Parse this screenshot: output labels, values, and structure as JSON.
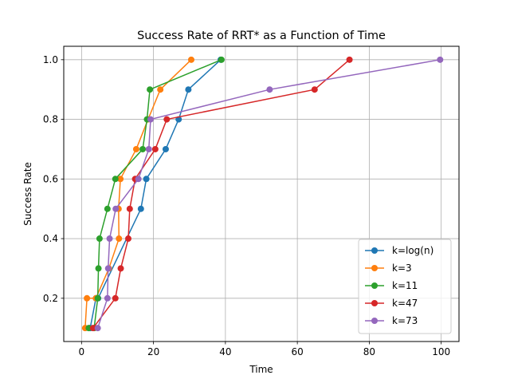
{
  "chart_data": {
    "type": "line",
    "title": "Success Rate of RRT* as a Function of Time",
    "xlabel": "Time",
    "ylabel": "Success Rate",
    "xlim": [
      -4.95,
      104.95
    ],
    "ylim": [
      0.055,
      1.045
    ],
    "xticks": [
      0,
      20,
      40,
      60,
      80,
      100
    ],
    "yticks": [
      0.2,
      0.4,
      0.6,
      0.8,
      1.0
    ],
    "xtick_labels": [
      "0",
      "20",
      "40",
      "60",
      "80",
      "100"
    ],
    "ytick_labels": [
      "0.2",
      "0.4",
      "0.6",
      "0.8",
      "1.0"
    ],
    "grid": true,
    "legend_position": "lower right",
    "series": [
      {
        "name": "k=log(n)",
        "color": "#1f77b4",
        "x": [
          2.4,
          4.0,
          4.6,
          16.5,
          18.0,
          23.4,
          27.0,
          29.7,
          38.7
        ],
        "y": [
          0.1,
          0.2,
          0.2,
          0.5,
          0.6,
          0.7,
          0.8,
          0.9,
          1.0
        ]
      },
      {
        "name": "k=3",
        "color": "#ff7f0e",
        "x": [
          1.0,
          1.5,
          4.0,
          7.6,
          10.4,
          10.3,
          10.8,
          15.2,
          18.5,
          21.9,
          30.5
        ],
        "y": [
          0.1,
          0.2,
          0.2,
          0.3,
          0.4,
          0.5,
          0.6,
          0.7,
          0.8,
          0.9,
          1.0
        ]
      },
      {
        "name": "k=11",
        "color": "#2ca02c",
        "x": [
          2.0,
          3.5,
          4.5,
          4.7,
          5.0,
          7.2,
          9.4,
          17.0,
          18.2,
          19.0,
          38.9
        ],
        "y": [
          0.1,
          0.1,
          0.2,
          0.3,
          0.4,
          0.5,
          0.6,
          0.7,
          0.8,
          0.9,
          1.0
        ]
      },
      {
        "name": "k=47",
        "color": "#d62728",
        "x": [
          3.2,
          9.4,
          10.9,
          13.0,
          13.4,
          14.9,
          20.5,
          23.7,
          64.8,
          74.5
        ],
        "y": [
          0.1,
          0.2,
          0.3,
          0.4,
          0.5,
          0.6,
          0.7,
          0.8,
          0.9,
          1.0
        ]
      },
      {
        "name": "k=73",
        "color": "#9467bd",
        "x": [
          4.5,
          7.2,
          7.4,
          7.8,
          9.5,
          15.8,
          18.7,
          19.2,
          52.3,
          99.7
        ],
        "y": [
          0.1,
          0.2,
          0.3,
          0.4,
          0.5,
          0.6,
          0.7,
          0.8,
          0.9,
          1.0
        ]
      }
    ]
  }
}
